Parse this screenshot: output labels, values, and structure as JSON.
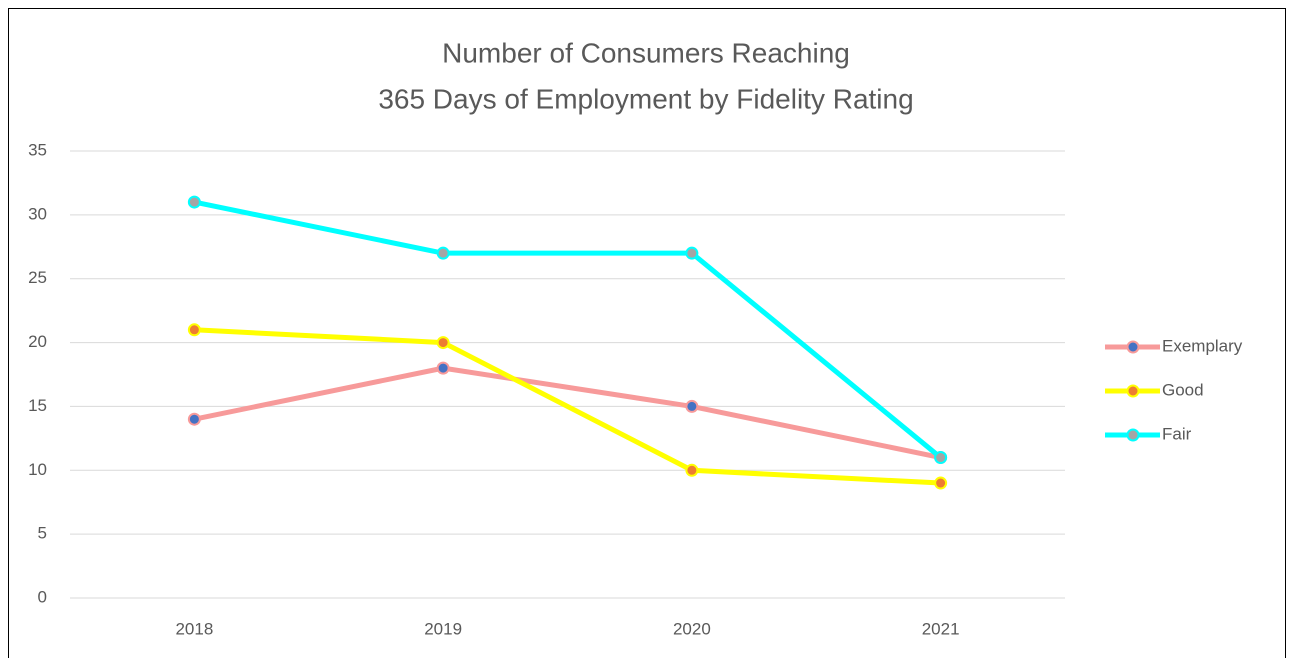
{
  "chart_data": {
    "type": "line",
    "title": [
      "Number of Consumers Reaching",
      "365 Days of Employment by Fidelity Rating"
    ],
    "categories": [
      "2018",
      "2019",
      "2020",
      "2021"
    ],
    "series": [
      {
        "name": "Exemplary",
        "color": "#f79a9a",
        "marker_color": "#4472c4",
        "values": [
          14,
          18,
          15,
          11
        ]
      },
      {
        "name": "Good",
        "color": "#ffff00",
        "marker_color": "#ed7d31",
        "values": [
          21,
          20,
          10,
          9
        ]
      },
      {
        "name": "Fair",
        "color": "#00ffff",
        "marker_color": "#a5a5a5",
        "values": [
          31,
          27,
          27,
          11
        ]
      }
    ],
    "ylim": [
      0,
      35
    ],
    "yticks": [
      0,
      5,
      10,
      15,
      20,
      25,
      30,
      35
    ],
    "grid": true,
    "legend": "right"
  }
}
